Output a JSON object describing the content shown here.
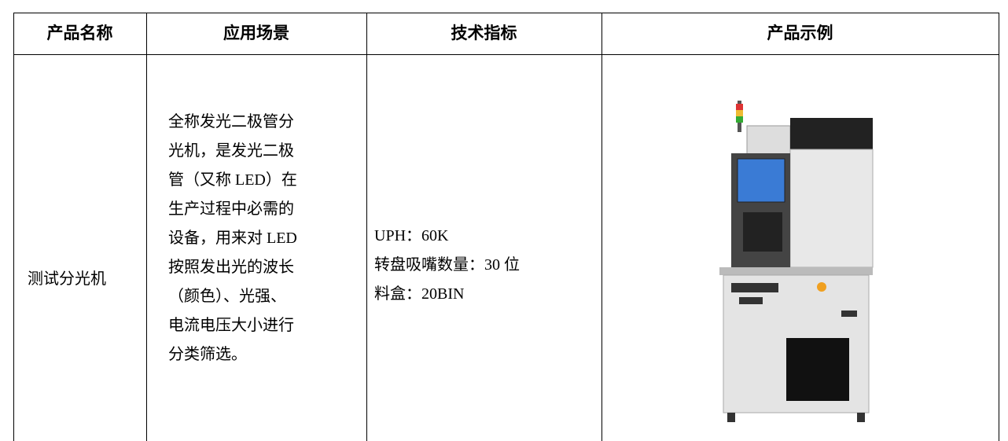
{
  "table": {
    "header": [
      "产品名称",
      "应用场景",
      "技术指标",
      "产品示例"
    ],
    "rows": [
      {
        "name": "测试分光机",
        "description": [
          "全称发光二极管分",
          "光机，是发光二极",
          "管（又称 LED）在",
          "生产过程中必需的",
          "设备，用来对 LED",
          "按照发出光的波长",
          "（颜色）、光强、",
          "电流电压大小进行",
          "分类筛选。"
        ],
        "specs": [
          "UPH：60K",
          "转盘吸嘴数量：30 位",
          "料盒：20BIN"
        ]
      }
    ]
  }
}
